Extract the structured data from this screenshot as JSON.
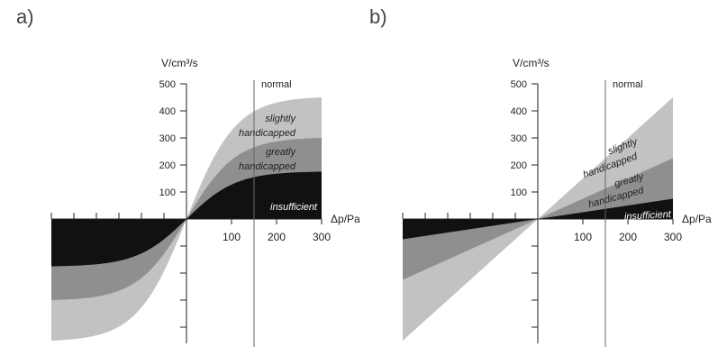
{
  "chart_data": [
    {
      "type": "area",
      "panel_label": "a)",
      "ylabel": "V/cm³/s",
      "xlabel": "Δp/Pa",
      "yticks": [
        100,
        200,
        300,
        400,
        500
      ],
      "xticks": [
        100,
        200,
        300
      ],
      "xlim": [
        -300,
        300
      ],
      "ylim": [
        -460,
        500
      ],
      "reference_line": {
        "x": 150,
        "label": "normal"
      },
      "shape": "saturating",
      "colors": {
        "slightly": "#c2c2c2",
        "greatly": "#8f8f8f",
        "insufficient": "#111111"
      },
      "series": [
        {
          "name": "slightly handicapped",
          "label_lines": [
            "slightly",
            "handicapped"
          ],
          "x": [
            -300,
            -200,
            -100,
            0,
            100,
            200,
            300
          ],
          "values": [
            -450,
            -380,
            -250,
            0,
            250,
            380,
            450
          ]
        },
        {
          "name": "greatly handicapped",
          "label_lines": [
            "greatly",
            "handicapped"
          ],
          "x": [
            -300,
            -200,
            -100,
            0,
            100,
            200,
            300
          ],
          "values": [
            -300,
            -260,
            -190,
            0,
            190,
            260,
            300
          ]
        },
        {
          "name": "insufficient",
          "label_lines": [
            "insufficient"
          ],
          "x": [
            -300,
            -200,
            -100,
            0,
            100,
            200,
            300
          ],
          "values": [
            -175,
            -165,
            -120,
            0,
            120,
            165,
            175
          ]
        }
      ]
    },
    {
      "type": "area",
      "panel_label": "b)",
      "ylabel": "V/cm³/s",
      "xlabel": "Δp/Pa",
      "yticks": [
        100,
        200,
        300,
        400,
        500
      ],
      "xticks": [
        100,
        200,
        300
      ],
      "xlim": [
        -300,
        300
      ],
      "ylim": [
        -460,
        500
      ],
      "reference_line": {
        "x": 150,
        "label": "normal"
      },
      "shape": "linear",
      "colors": {
        "slightly": "#c2c2c2",
        "greatly": "#8f8f8f",
        "insufficient": "#111111"
      },
      "series": [
        {
          "name": "slightly handicapped",
          "label_lines": [
            "slightly",
            "handicapped"
          ],
          "x": [
            -300,
            0,
            300
          ],
          "values": [
            -450,
            0,
            450
          ]
        },
        {
          "name": "greatly handicapped",
          "label_lines": [
            "greatly",
            "handicapped"
          ],
          "x": [
            -300,
            0,
            300
          ],
          "values": [
            -225,
            0,
            225
          ]
        },
        {
          "name": "insufficient",
          "label_lines": [
            "insufficient"
          ],
          "x": [
            -300,
            0,
            300
          ],
          "values": [
            -75,
            0,
            75
          ]
        }
      ]
    }
  ]
}
